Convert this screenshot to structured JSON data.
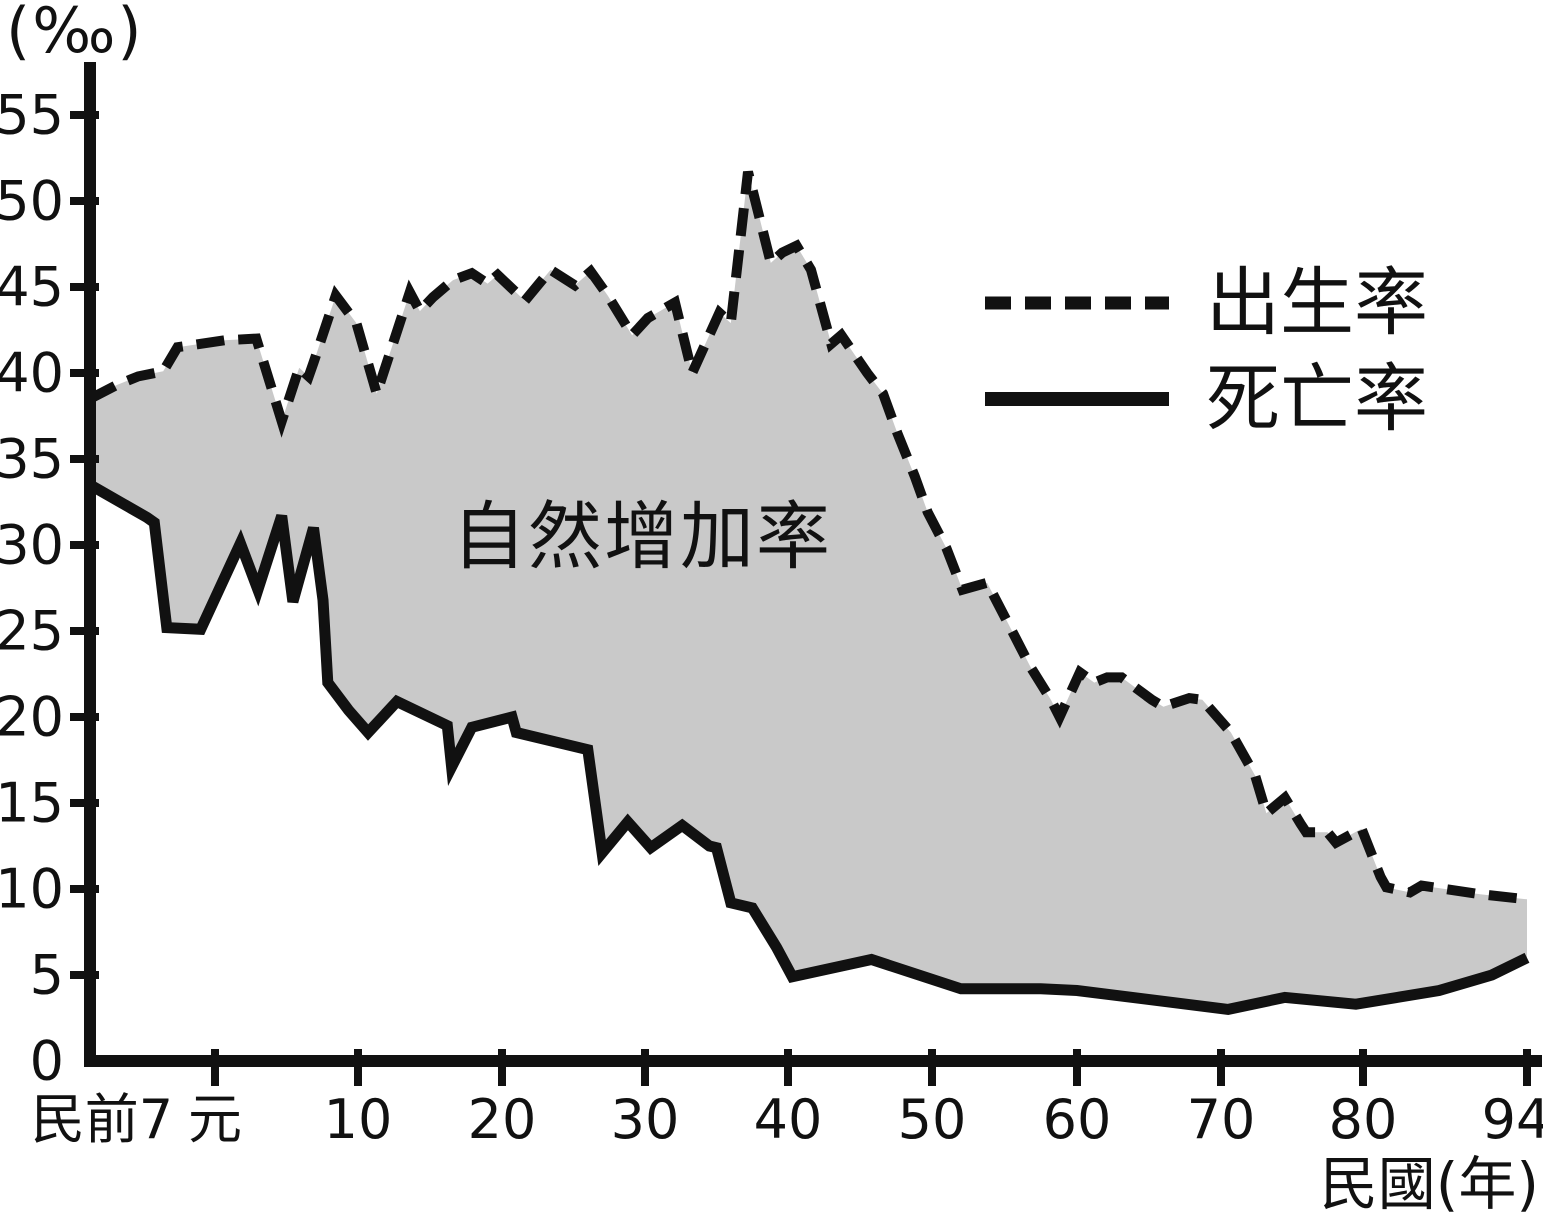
{
  "chart_data": {
    "type": "area",
    "title": "",
    "area_label": "自然增加率",
    "y_axis": {
      "unit_label": "(‰)",
      "ticks": [
        0,
        5,
        10,
        15,
        20,
        25,
        30,
        35,
        40,
        45,
        50,
        55
      ],
      "range": [
        0,
        58
      ]
    },
    "x_axis": {
      "unit_label": "民國(年)",
      "pre_era_label": "民前7",
      "tick_years": [
        1,
        10,
        20,
        30,
        40,
        50,
        60,
        70,
        80,
        94
      ],
      "tick_labels": [
        "元",
        "10",
        "20",
        "30",
        "40",
        "50",
        "60",
        "70",
        "80",
        "94"
      ],
      "range_years": [
        -6,
        94
      ],
      "grid": false
    },
    "legend_position": "upper-right",
    "series": [
      {
        "name": "出生率",
        "style": "dashed",
        "points": [
          [
            -6,
            38.5
          ],
          [
            -4.5,
            39.3
          ],
          [
            -3.3,
            39.8
          ],
          [
            -1.9,
            40.1
          ],
          [
            -1.1,
            41.5
          ],
          [
            1.6,
            41.9
          ],
          [
            3.6,
            42.0
          ],
          [
            5.2,
            37.2
          ],
          [
            6.3,
            40.3
          ],
          [
            6.9,
            39.8
          ],
          [
            7.2,
            40.6
          ],
          [
            8.6,
            44.5
          ],
          [
            9.9,
            42.9
          ],
          [
            11.3,
            38.8
          ],
          [
            13.6,
            44.7
          ],
          [
            14.3,
            43.6
          ],
          [
            15.2,
            44.4
          ],
          [
            16.6,
            45.4
          ],
          [
            17.9,
            45.8
          ],
          [
            19.0,
            45.2
          ],
          [
            19.7,
            45.7
          ],
          [
            21.6,
            44.2
          ],
          [
            23.4,
            46.0
          ],
          [
            25.1,
            45.1
          ],
          [
            26.2,
            45.9
          ],
          [
            27.4,
            44.5
          ],
          [
            29.1,
            42.2
          ],
          [
            30.2,
            43.2
          ],
          [
            32.1,
            44.1
          ],
          [
            33.3,
            40.0
          ],
          [
            35.2,
            43.5
          ],
          [
            36.0,
            42.9
          ],
          [
            37.2,
            51.7
          ],
          [
            38.8,
            46.4
          ],
          [
            39.6,
            47.0
          ],
          [
            40.6,
            47.4
          ],
          [
            41.6,
            46.0
          ],
          [
            43.0,
            41.7
          ],
          [
            43.7,
            42.2
          ],
          [
            45.5,
            40.0
          ],
          [
            46.6,
            38.8
          ],
          [
            47.6,
            36.5
          ],
          [
            48.8,
            34.0
          ],
          [
            49.7,
            31.9
          ],
          [
            51.0,
            29.8
          ],
          [
            52.1,
            27.4
          ],
          [
            53.8,
            27.8
          ],
          [
            55.4,
            25.2
          ],
          [
            56.8,
            22.9
          ],
          [
            58.2,
            21.0
          ],
          [
            58.8,
            20.0
          ],
          [
            60.2,
            22.6
          ],
          [
            61.2,
            22.0
          ],
          [
            62.1,
            22.3
          ],
          [
            63.1,
            22.3
          ],
          [
            65.2,
            21.0
          ],
          [
            66.0,
            20.6
          ],
          [
            67.8,
            21.1
          ],
          [
            68.7,
            21.0
          ],
          [
            70.7,
            19.1
          ],
          [
            72.4,
            16.6
          ],
          [
            73.2,
            14.4
          ],
          [
            74.5,
            15.3
          ],
          [
            75.6,
            13.8
          ],
          [
            76.0,
            13.3
          ],
          [
            77.5,
            13.3
          ],
          [
            78.1,
            12.7
          ],
          [
            79.9,
            13.5
          ],
          [
            81.5,
            10.7
          ],
          [
            82.0,
            10.1
          ],
          [
            84.0,
            9.8
          ],
          [
            85.0,
            10.2
          ],
          [
            87.0,
            10.0
          ],
          [
            90.0,
            9.7
          ],
          [
            94.0,
            9.4
          ]
        ]
      },
      {
        "name": "死亡率",
        "style": "solid",
        "points": [
          [
            -6,
            33.5
          ],
          [
            -2.8,
            31.6
          ],
          [
            -2.4,
            31.3
          ],
          [
            -1.7,
            25.2
          ],
          [
            0.2,
            25.1
          ],
          [
            2.6,
            30.1
          ],
          [
            3.7,
            27.4
          ],
          [
            5.2,
            31.7
          ],
          [
            5.9,
            26.7
          ],
          [
            7.2,
            31.0
          ],
          [
            7.8,
            26.8
          ],
          [
            8.1,
            22.0
          ],
          [
            9.4,
            20.4
          ],
          [
            10.7,
            19.1
          ],
          [
            12.7,
            20.9
          ],
          [
            16.2,
            19.5
          ],
          [
            16.5,
            17.1
          ],
          [
            17.9,
            19.4
          ],
          [
            20.7,
            20.0
          ],
          [
            21.0,
            19.1
          ],
          [
            26.0,
            18.1
          ],
          [
            27.0,
            12.1
          ],
          [
            28.8,
            13.9
          ],
          [
            30.4,
            12.4
          ],
          [
            32.6,
            13.7
          ],
          [
            34.5,
            12.5
          ],
          [
            35.0,
            12.4
          ],
          [
            36.0,
            9.2
          ],
          [
            37.5,
            8.9
          ],
          [
            39.2,
            6.6
          ],
          [
            40.3,
            4.9
          ],
          [
            45.8,
            5.9
          ],
          [
            52.0,
            4.2
          ],
          [
            57.5,
            4.2
          ],
          [
            60.0,
            4.1
          ],
          [
            70.5,
            3.0
          ],
          [
            74.5,
            3.7
          ],
          [
            79.5,
            3.3
          ],
          [
            86.5,
            4.1
          ],
          [
            91.0,
            5.0
          ],
          [
            94.0,
            6.0
          ]
        ]
      }
    ],
    "colors": {
      "ink": "#111111",
      "area_fill": "#c9c9c9",
      "background": "#ffffff"
    }
  },
  "legend": {
    "birth_label": "出生率",
    "death_label": "死亡率"
  }
}
